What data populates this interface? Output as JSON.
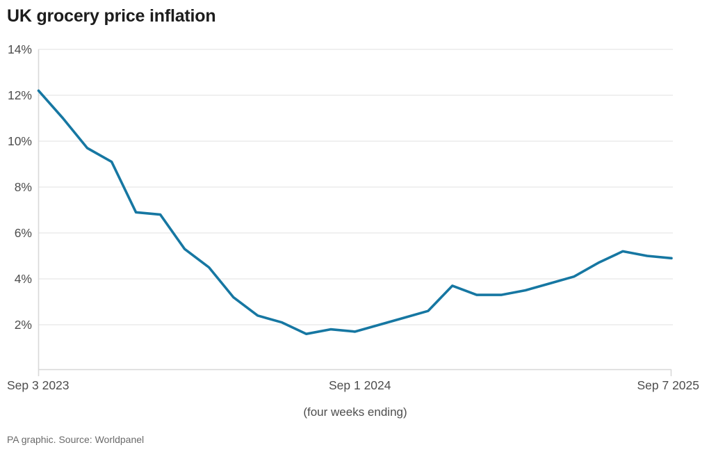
{
  "chart": {
    "title": "UK grocery price inflation",
    "y_axis": {
      "ticks": [
        {
          "value": 14,
          "label": "14%"
        },
        {
          "value": 12,
          "label": "12%"
        },
        {
          "value": 10,
          "label": "10%"
        },
        {
          "value": 8,
          "label": "8%"
        },
        {
          "value": 6,
          "label": "6%"
        },
        {
          "value": 4,
          "label": "4%"
        },
        {
          "value": 2,
          "label": "2%"
        }
      ]
    },
    "x_axis": {
      "title": "(four weeks ending)",
      "ticks": [
        {
          "index": 0,
          "label": "Sep 3 2023",
          "align": "start"
        },
        {
          "index": 13,
          "label": "Sep 1 2024",
          "align": "middle"
        },
        {
          "index": 26,
          "label": "Sep 7 2025",
          "align": "end"
        }
      ]
    }
  },
  "footer": {
    "source": "PA graphic. Source: Worldpanel"
  },
  "colors": {
    "line": "#1677A2",
    "grid": "#ECECEC",
    "axis": "#D8D8D8",
    "tick_text": "#4D4D4D",
    "title_text": "#1D1D1D"
  },
  "chart_data": {
    "type": "line",
    "title": "UK grocery price inflation",
    "xlabel": "(four weeks ending)",
    "ylabel": "",
    "ylim": [
      0,
      14
    ],
    "grid": "horizontal",
    "legend": false,
    "x_tick_labels": [
      "Sep 3 2023",
      "Sep 1 2024",
      "Sep 7 2025"
    ],
    "x_tick_indices": [
      0,
      13,
      26
    ],
    "series": [
      {
        "name": "UK grocery price inflation (%)",
        "values": [
          12.2,
          11.0,
          9.7,
          9.1,
          6.9,
          6.8,
          5.3,
          4.5,
          3.2,
          2.4,
          2.1,
          1.6,
          1.8,
          1.7,
          2.0,
          2.3,
          2.6,
          3.7,
          3.3,
          3.3,
          3.5,
          3.8,
          4.1,
          4.7,
          5.2,
          5.0,
          4.9
        ]
      }
    ]
  }
}
